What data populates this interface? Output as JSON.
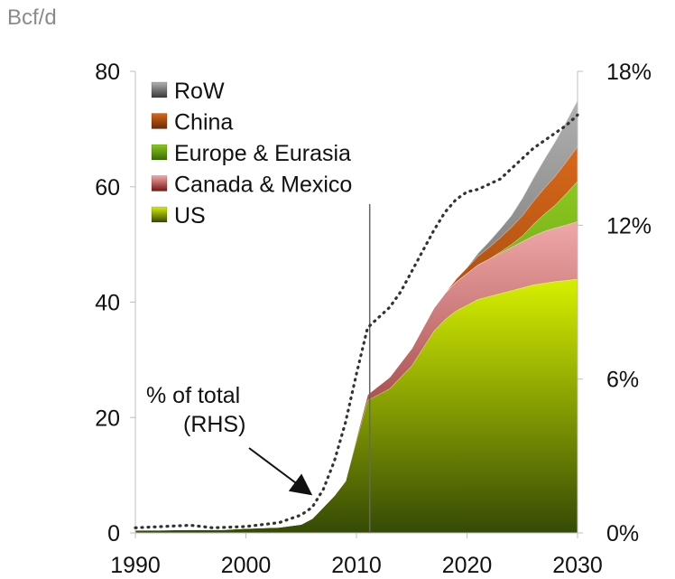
{
  "chart_data": {
    "type": "area",
    "units_label": "Bcf/d",
    "x": [
      1990,
      1992,
      1995,
      1998,
      2000,
      2003,
      2005,
      2006,
      2007,
      2008,
      2009,
      2010,
      2011,
      2012,
      2013,
      2014,
      2015,
      2016,
      2017,
      2018,
      2019,
      2020,
      2021,
      2022,
      2023,
      2024,
      2025,
      2026,
      2027,
      2028,
      2029,
      2030
    ],
    "xlim": [
      1990,
      2030
    ],
    "x_ticks": [
      "1990",
      "2000",
      "2010",
      "2020",
      "2030"
    ],
    "ylim": [
      0,
      80
    ],
    "y_ticks": [
      "0",
      "20",
      "40",
      "60",
      "80"
    ],
    "y2lim": [
      0,
      18
    ],
    "y2_ticks": [
      "0%",
      "6%",
      "12%",
      "18%"
    ],
    "series": [
      {
        "name": "US",
        "color": "#a8c400",
        "values": [
          0.5,
          0.5,
          0.6,
          0.6,
          0.8,
          1.0,
          1.5,
          2.5,
          4.5,
          6.5,
          9.0,
          16.0,
          23.0,
          24.0,
          25.0,
          27.0,
          29.0,
          32.0,
          35.0,
          37.0,
          38.5,
          39.5,
          40.5,
          41.0,
          41.5,
          42.0,
          42.5,
          43.0,
          43.3,
          43.6,
          43.8,
          44.0
        ]
      },
      {
        "name": "Canada & Mexico",
        "color": "#e89a9a",
        "values": [
          0,
          0,
          0,
          0,
          0,
          0,
          0,
          0,
          0,
          0,
          0,
          0.5,
          1.0,
          1.5,
          2.0,
          2.5,
          3.0,
          3.5,
          4.0,
          4.5,
          5.0,
          5.5,
          6.0,
          6.5,
          7.0,
          7.5,
          8.0,
          8.5,
          9.0,
          9.3,
          9.6,
          10.0
        ]
      },
      {
        "name": "Europe & Eurasia",
        "color": "#6aa010",
        "values": [
          0,
          0,
          0,
          0,
          0,
          0,
          0,
          0,
          0,
          0,
          0,
          0,
          0,
          0,
          0,
          0,
          0,
          0,
          0,
          0,
          0,
          0,
          0,
          0,
          0.2,
          0.5,
          1.0,
          2.0,
          3.0,
          4.0,
          5.5,
          7.0
        ]
      },
      {
        "name": "China",
        "color": "#c0560a",
        "values": [
          0,
          0,
          0,
          0,
          0,
          0,
          0,
          0,
          0,
          0,
          0,
          0,
          0,
          0,
          0,
          0,
          0,
          0,
          0,
          0,
          0.5,
          1.0,
          1.5,
          2.0,
          2.5,
          3.0,
          3.5,
          4.0,
          4.5,
          5.0,
          5.5,
          6.0
        ]
      },
      {
        "name": "RoW",
        "color": "#777777",
        "values": [
          0,
          0,
          0,
          0,
          0,
          0,
          0,
          0,
          0,
          0,
          0,
          0,
          0,
          0,
          0,
          0,
          0,
          0,
          0,
          0,
          0,
          0,
          0.5,
          1.0,
          1.5,
          2.0,
          3.0,
          4.0,
          5.0,
          6.0,
          7.0,
          8.0
        ]
      },
      {
        "name": "% of total (RHS)",
        "axis": "right",
        "style": "dotted",
        "x": [
          1990,
          1995,
          1997,
          2000,
          2003,
          2005,
          2006,
          2007,
          2008,
          2009,
          2010,
          2011,
          2012,
          2013,
          2014,
          2015,
          2016,
          2017,
          2018,
          2019,
          2020,
          2021,
          2022,
          2023,
          2024,
          2025,
          2026,
          2027,
          2028,
          2029,
          2030
        ],
        "values": [
          0.2,
          0.3,
          0.2,
          0.25,
          0.4,
          0.7,
          1.0,
          1.7,
          2.8,
          4.3,
          6.2,
          8.0,
          8.4,
          8.8,
          9.4,
          10.2,
          11.0,
          11.8,
          12.5,
          13.0,
          13.3,
          13.4,
          13.6,
          13.8,
          14.2,
          14.6,
          15.0,
          15.3,
          15.6,
          15.9,
          16.3
        ]
      }
    ],
    "legend_order": [
      "RoW",
      "China",
      "Europe & Eurasia",
      "Canada & Mexico",
      "US"
    ],
    "legend_position": "top-left",
    "annotations": [
      {
        "text": "% of total",
        "text2": "(RHS)",
        "arrow_to_x": 2006
      }
    ],
    "vertical_marker_x": 2011.2
  }
}
